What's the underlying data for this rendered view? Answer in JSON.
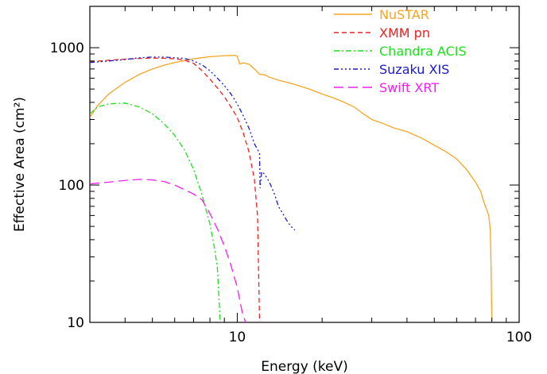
{
  "chart_data": {
    "type": "line",
    "xlabel": "Energy (keV)",
    "ylabel": "Effective Area (cm²)",
    "xscale": "log",
    "yscale": "log",
    "xlim": [
      3,
      100
    ],
    "ylim": [
      10,
      2000
    ],
    "x_ticks": [
      10,
      100
    ],
    "x_tick_labels": [
      "10",
      "100"
    ],
    "y_ticks": [
      10,
      100,
      1000
    ],
    "y_tick_labels": [
      "10",
      "100",
      "1000"
    ],
    "grid": false,
    "legend_position": "top-right",
    "series": [
      {
        "name": "NuSTAR",
        "color": "#f5a623",
        "dash": "solid",
        "points": [
          [
            3.0,
            310
          ],
          [
            3.2,
            380
          ],
          [
            3.5,
            460
          ],
          [
            4.0,
            560
          ],
          [
            4.5,
            640
          ],
          [
            5.0,
            700
          ],
          [
            5.5,
            745
          ],
          [
            6.0,
            780
          ],
          [
            7.0,
            830
          ],
          [
            8.0,
            860
          ],
          [
            9.0,
            875
          ],
          [
            9.8,
            880
          ],
          [
            10.0,
            870
          ],
          [
            10.2,
            760
          ],
          [
            10.5,
            775
          ],
          [
            11.0,
            760
          ],
          [
            11.5,
            700
          ],
          [
            12.0,
            640
          ],
          [
            12.5,
            635
          ],
          [
            13.0,
            610
          ],
          [
            14.0,
            580
          ],
          [
            15.0,
            560
          ],
          [
            16.0,
            540
          ],
          [
            18.0,
            500
          ],
          [
            20.0,
            460
          ],
          [
            22.0,
            430
          ],
          [
            24.0,
            400
          ],
          [
            26.0,
            370
          ],
          [
            28.0,
            330
          ],
          [
            30.0,
            300
          ],
          [
            33.0,
            280
          ],
          [
            36.0,
            260
          ],
          [
            40.0,
            245
          ],
          [
            45.0,
            220
          ],
          [
            50.0,
            195
          ],
          [
            55.0,
            175
          ],
          [
            60.0,
            155
          ],
          [
            65.0,
            130
          ],
          [
            70.0,
            105
          ],
          [
            73.0,
            90
          ],
          [
            75.0,
            75
          ],
          [
            78.0,
            60
          ],
          [
            79.0,
            47
          ],
          [
            79.5,
            25
          ],
          [
            80.0,
            10
          ]
        ]
      },
      {
        "name": "XMM pn",
        "color": "#ee2222",
        "dash": "6,4",
        "points": [
          [
            3.0,
            790
          ],
          [
            3.5,
            810
          ],
          [
            4.0,
            825
          ],
          [
            4.5,
            835
          ],
          [
            5.0,
            840
          ],
          [
            5.5,
            838
          ],
          [
            6.0,
            830
          ],
          [
            6.5,
            810
          ],
          [
            7.0,
            770
          ],
          [
            7.5,
            680
          ],
          [
            8.0,
            590
          ],
          [
            8.5,
            510
          ],
          [
            9.0,
            440
          ],
          [
            9.5,
            370
          ],
          [
            10.0,
            310
          ],
          [
            10.5,
            240
          ],
          [
            11.0,
            175
          ],
          [
            11.5,
            110
          ],
          [
            11.8,
            60
          ],
          [
            12.0,
            10
          ]
        ]
      },
      {
        "name": "Chandra ACIS",
        "color": "#22dd22",
        "dash": "7,3,2,3",
        "points": [
          [
            3.0,
            330
          ],
          [
            3.2,
            370
          ],
          [
            3.5,
            390
          ],
          [
            4.0,
            395
          ],
          [
            4.5,
            370
          ],
          [
            5.0,
            330
          ],
          [
            5.5,
            280
          ],
          [
            6.0,
            230
          ],
          [
            6.5,
            180
          ],
          [
            7.0,
            130
          ],
          [
            7.5,
            85
          ],
          [
            8.0,
            52
          ],
          [
            8.3,
            35
          ],
          [
            8.5,
            25
          ],
          [
            8.6,
            16
          ],
          [
            8.7,
            10
          ]
        ]
      },
      {
        "name": "Suzaku XIS",
        "color": "#1a1acc",
        "dash": "6,3,2,3,2,3,2,3",
        "points": [
          [
            3.0,
            780
          ],
          [
            3.5,
            800
          ],
          [
            4.0,
            820
          ],
          [
            4.5,
            845
          ],
          [
            5.0,
            855
          ],
          [
            5.5,
            855
          ],
          [
            6.0,
            845
          ],
          [
            6.5,
            835
          ],
          [
            7.0,
            800
          ],
          [
            7.5,
            750
          ],
          [
            8.0,
            680
          ],
          [
            8.5,
            600
          ],
          [
            9.0,
            530
          ],
          [
            9.5,
            460
          ],
          [
            10.0,
            390
          ],
          [
            10.5,
            320
          ],
          [
            11.0,
            260
          ],
          [
            11.5,
            200
          ],
          [
            12.0,
            170
          ],
          [
            12.05,
            95
          ],
          [
            12.2,
            125
          ],
          [
            12.5,
            120
          ],
          [
            13.0,
            105
          ],
          [
            13.5,
            88
          ],
          [
            14.0,
            70
          ],
          [
            14.5,
            62
          ],
          [
            15.0,
            55
          ],
          [
            15.5,
            50
          ],
          [
            16.0,
            47
          ]
        ]
      },
      {
        "name": "Swift XRT",
        "color": "#ee22ee",
        "dash": "12,6",
        "points": [
          [
            3.0,
            102
          ],
          [
            3.5,
            105
          ],
          [
            4.0,
            108
          ],
          [
            4.5,
            110
          ],
          [
            5.0,
            109
          ],
          [
            5.5,
            106
          ],
          [
            6.0,
            100
          ],
          [
            7.0,
            86
          ],
          [
            7.5,
            78
          ],
          [
            8.0,
            62
          ],
          [
            8.5,
            48
          ],
          [
            9.0,
            36
          ],
          [
            9.5,
            26
          ],
          [
            10.0,
            18
          ],
          [
            10.4,
            12
          ],
          [
            10.7,
            10
          ]
        ]
      }
    ]
  }
}
